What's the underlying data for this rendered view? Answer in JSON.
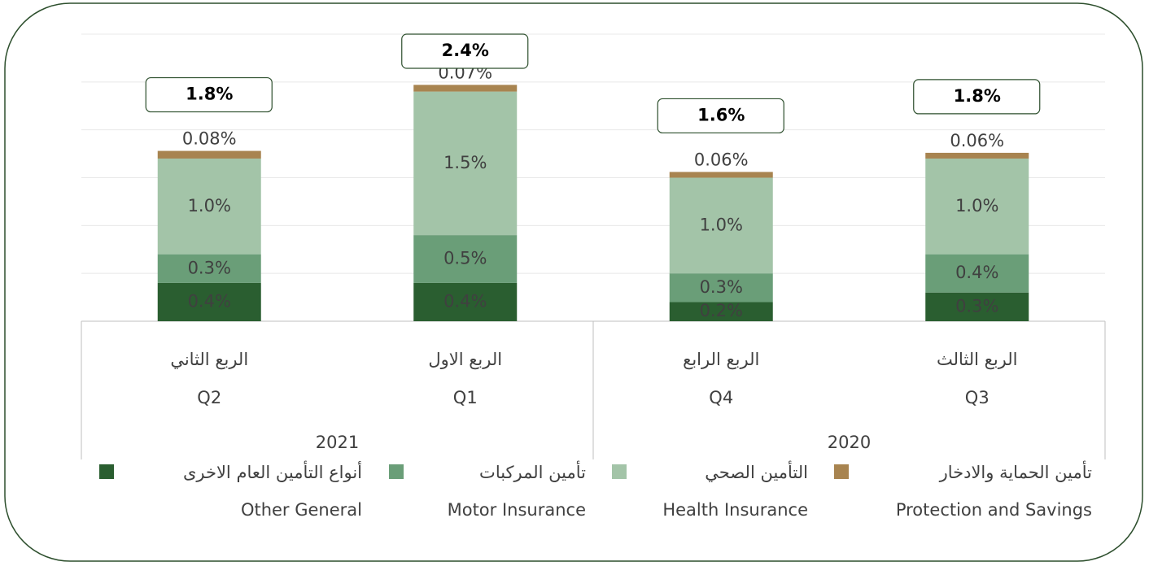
{
  "chart_data": {
    "type": "stacked_bar",
    "categories": [
      "Q2",
      "Q1",
      "Q4",
      "Q3"
    ],
    "category_labels_ar": [
      "الربع الثاني",
      "الربع الاول",
      "الربع الرابع",
      "الربع الثالث"
    ],
    "groups": [
      "2021",
      "2020"
    ],
    "series": [
      {
        "name": "أنواع التأمين العام الاخرى",
        "name_en": "Other General",
        "color": "#2a5e30",
        "label_color": "#ffffff",
        "values": [
          0.4,
          0.4,
          0.2,
          0.3
        ],
        "value_labels": [
          "0.4%",
          "0.4%",
          "0.2%",
          "0.3%"
        ]
      },
      {
        "name": "تأمين المركبات",
        "name_en": "Motor Insurance",
        "color": "#6a9e78",
        "label_color": "#404040",
        "values": [
          0.3,
          0.5,
          0.3,
          0.4
        ],
        "value_labels": [
          "0.3%",
          "0.5%",
          "0.3%",
          "0.4%"
        ]
      },
      {
        "name": "التأمين الصحي",
        "name_en": "Health Insurance",
        "color": "#a3c4a8",
        "label_color": "#404040",
        "values": [
          1.0,
          1.5,
          1.0,
          1.0
        ],
        "value_labels": [
          "1.0%",
          "1.5%",
          "1.0%",
          "1.0%"
        ]
      },
      {
        "name": "تأمين الحماية والادخار",
        "name_en": "Protection and Savings",
        "color": "#a88450",
        "label_color": "#404040",
        "values": [
          0.08,
          0.07,
          0.06,
          0.06
        ],
        "value_labels": [
          "0.08%",
          "0.07%",
          "0.06%",
          "0.06%"
        ]
      }
    ],
    "totals": [
      1.8,
      2.4,
      1.6,
      1.8
    ],
    "total_labels": [
      "1.8%",
      "2.4%",
      "1.6%",
      "1.8%"
    ],
    "ylim": [
      0,
      3
    ],
    "yticks": [
      0,
      0.5,
      1,
      1.5,
      2,
      2.5,
      3
    ],
    "grid": true
  }
}
